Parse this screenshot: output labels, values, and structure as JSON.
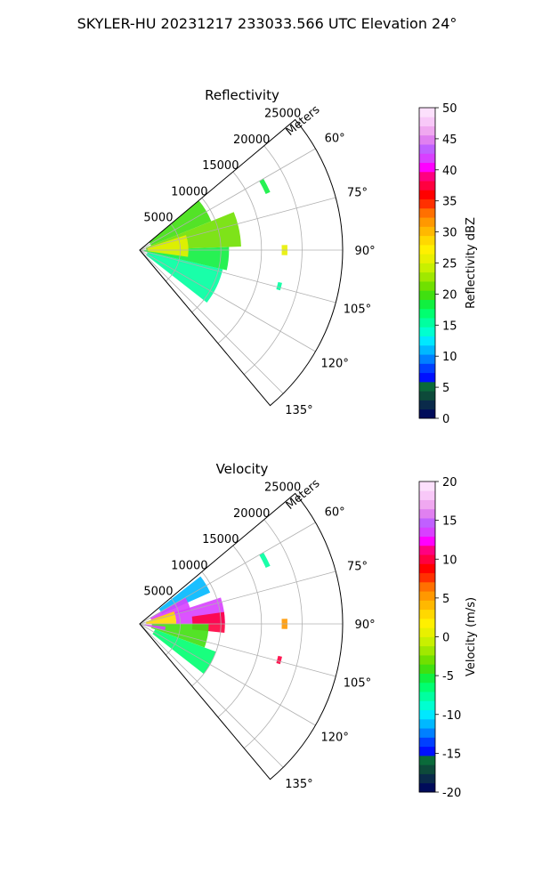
{
  "figure": {
    "suptitle": "SKYLER-HU  20231217  233033.566 UTC Elevation 24°"
  },
  "chart_data": [
    {
      "type": "polar-sector",
      "title": "Reflectivity",
      "range_label": "Meters",
      "range_ticks": [
        5000,
        10000,
        15000,
        20000,
        25000
      ],
      "range_max": 25000,
      "azimuth_range_deg": [
        50,
        140
      ],
      "azimuth_ticks": [
        60,
        75,
        90,
        105,
        120,
        135
      ],
      "grid": true,
      "colorbar": {
        "label": "Reflectivity dBZ",
        "min": 0,
        "max": 50,
        "ticks": [
          0,
          5,
          10,
          15,
          20,
          25,
          30,
          35,
          40,
          45,
          50
        ],
        "colors": [
          "#000b5a",
          "#0a2a4a",
          "#0d4a3a",
          "#0a6a3a",
          "#0010ff",
          "#0040ff",
          "#0080ff",
          "#00b8ff",
          "#00e8ff",
          "#00ffd0",
          "#00ffa0",
          "#00ff70",
          "#10f040",
          "#40e010",
          "#70e000",
          "#a0e800",
          "#c8f000",
          "#e8f000",
          "#fff000",
          "#ffd800",
          "#ffb800",
          "#ff9800",
          "#ff7000",
          "#ff3000",
          "#ff0000",
          "#ff0040",
          "#ff0080",
          "#ff00ff",
          "#d840ff",
          "#c060ff",
          "#e080f0",
          "#f0a8f0",
          "#f8c8f8",
          "#fce0fc"
        ]
      },
      "echo_regions": [
        {
          "az": [
            50,
            68
          ],
          "range": [
            1500,
            9500
          ],
          "value": 20
        },
        {
          "az": [
            68,
            88
          ],
          "range": [
            800,
            12500
          ],
          "value": 21
        },
        {
          "az": [
            88,
            103
          ],
          "range": [
            500,
            11000
          ],
          "value": 19
        },
        {
          "az": [
            103,
            128
          ],
          "range": [
            1000,
            10500
          ],
          "value": 16
        },
        {
          "az": [
            72,
            98
          ],
          "range": [
            1000,
            6000
          ],
          "value": 26
        },
        {
          "az": [
            60,
            66
          ],
          "range": [
            17000,
            17600
          ],
          "value": 18
        },
        {
          "az": [
            88,
            92
          ],
          "range": [
            17500,
            18200
          ],
          "value": 26
        },
        {
          "az": [
            103,
            106
          ],
          "range": [
            17500,
            18000
          ],
          "value": 15
        }
      ]
    },
    {
      "type": "polar-sector",
      "title": "Velocity",
      "range_label": "Meters",
      "range_ticks": [
        5000,
        10000,
        15000,
        20000,
        25000
      ],
      "range_max": 25000,
      "azimuth_range_deg": [
        50,
        140
      ],
      "azimuth_ticks": [
        60,
        75,
        90,
        105,
        120,
        135
      ],
      "grid": true,
      "colorbar": {
        "label": "Velocity (m/s)",
        "min": -20,
        "max": 20,
        "ticks": [
          -20,
          -15,
          -10,
          -5,
          0,
          5,
          10,
          15,
          20
        ],
        "colors": [
          "#000b5a",
          "#0a2a4a",
          "#0d4a3a",
          "#0a6a3a",
          "#0010ff",
          "#0040ff",
          "#0080ff",
          "#00b8ff",
          "#00e8ff",
          "#00ffd0",
          "#00ffa0",
          "#00ff70",
          "#10f040",
          "#40e010",
          "#70e000",
          "#a0e800",
          "#c8f000",
          "#e8f000",
          "#fff000",
          "#ffd800",
          "#ffb800",
          "#ff9800",
          "#ff7000",
          "#ff3000",
          "#ff0000",
          "#ff0040",
          "#ff0080",
          "#ff00ff",
          "#d840ff",
          "#c060ff",
          "#e080f0",
          "#f0a8f0",
          "#f8c8f8",
          "#fce0fc"
        ]
      },
      "echo_regions": [
        {
          "az": [
            52,
            66
          ],
          "range": [
            3000,
            9500
          ],
          "value": -11
        },
        {
          "az": [
            60,
            76
          ],
          "range": [
            1500,
            6500
          ],
          "value": 13
        },
        {
          "az": [
            72,
            90
          ],
          "range": [
            4500,
            10500
          ],
          "value": 14
        },
        {
          "az": [
            82,
            96
          ],
          "range": [
            6500,
            10500
          ],
          "value": 10
        },
        {
          "az": [
            70,
            92
          ],
          "range": [
            800,
            4500
          ],
          "value": 3
        },
        {
          "az": [
            90,
            110
          ],
          "range": [
            1500,
            8500
          ],
          "value": -4
        },
        {
          "az": [
            110,
            128
          ],
          "range": [
            2000,
            10000
          ],
          "value": -6
        },
        {
          "az": [
            96,
            104
          ],
          "range": [
            600,
            3200
          ],
          "value": 14
        },
        {
          "az": [
            60,
            66
          ],
          "range": [
            17000,
            17600
          ],
          "value": -8
        },
        {
          "az": [
            88,
            92
          ],
          "range": [
            17500,
            18200
          ],
          "value": 5
        },
        {
          "az": [
            103,
            106
          ],
          "range": [
            17500,
            18000
          ],
          "value": 10
        }
      ]
    }
  ]
}
